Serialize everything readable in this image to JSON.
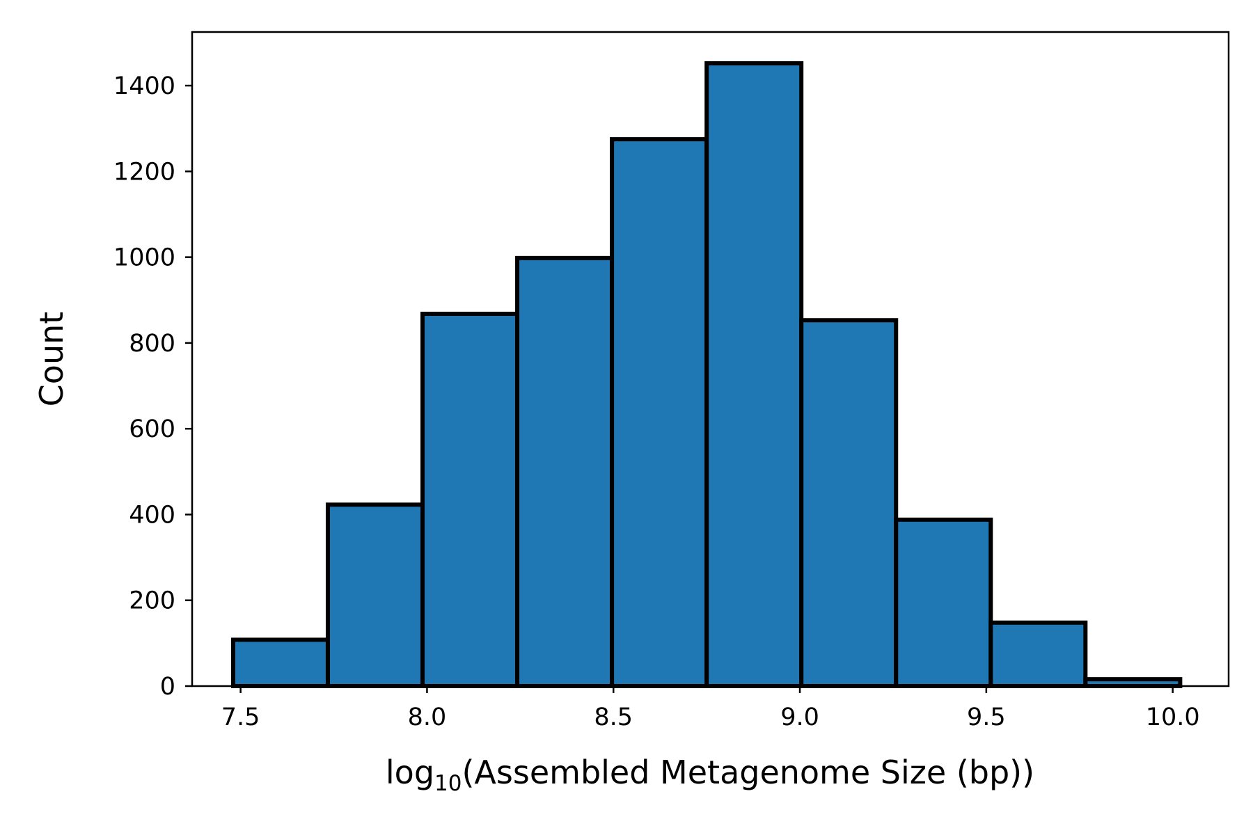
{
  "chart_data": {
    "type": "bar",
    "title": "",
    "xlabel_prefix": "log",
    "xlabel_sub": "10",
    "xlabel_rest": "(Assembled Metagenome Size (bp))",
    "ylabel": "Count",
    "xlim": [
      7.37,
      10.15
    ],
    "ylim": [
      0,
      1525
    ],
    "x_ticks": [
      {
        "value": 7.5,
        "label": "7.5"
      },
      {
        "value": 8.0,
        "label": "8.0"
      },
      {
        "value": 8.5,
        "label": "8.5"
      },
      {
        "value": 9.0,
        "label": "9.0"
      },
      {
        "value": 9.5,
        "label": "9.5"
      },
      {
        "value": 10.0,
        "label": "10.0"
      }
    ],
    "y_ticks": [
      {
        "value": 0,
        "label": "0"
      },
      {
        "value": 200,
        "label": "200"
      },
      {
        "value": 400,
        "label": "400"
      },
      {
        "value": 600,
        "label": "600"
      },
      {
        "value": 800,
        "label": "800"
      },
      {
        "value": 1000,
        "label": "1000"
      },
      {
        "value": 1200,
        "label": "1200"
      },
      {
        "value": 1400,
        "label": "1400"
      }
    ],
    "bins": [
      {
        "start": 7.48,
        "end": 7.734,
        "count": 108
      },
      {
        "start": 7.734,
        "end": 7.988,
        "count": 423
      },
      {
        "start": 7.988,
        "end": 8.242,
        "count": 868
      },
      {
        "start": 8.242,
        "end": 8.496,
        "count": 998
      },
      {
        "start": 8.496,
        "end": 8.75,
        "count": 1275
      },
      {
        "start": 8.75,
        "end": 9.004,
        "count": 1452
      },
      {
        "start": 9.004,
        "end": 9.258,
        "count": 853
      },
      {
        "start": 9.258,
        "end": 9.512,
        "count": 388
      },
      {
        "start": 9.512,
        "end": 9.766,
        "count": 148
      },
      {
        "start": 9.766,
        "end": 10.02,
        "count": 16
      }
    ],
    "grid": false,
    "legend": "none",
    "colors": {
      "bar_fill": "#1f77b4",
      "bar_edge": "#000000"
    }
  }
}
